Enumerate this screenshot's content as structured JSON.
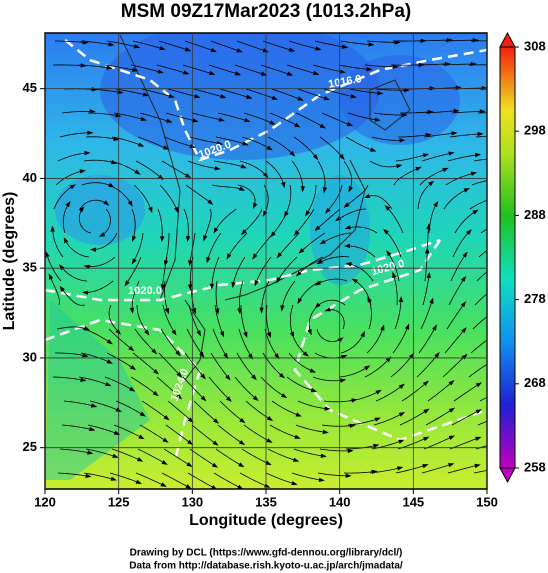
{
  "chart_data": {
    "type": "map",
    "title": "MSM 09Z17Mar2023 (1013.2hPa)",
    "xlabel": "Longitude (degrees)",
    "ylabel": "Latitude  (degrees)",
    "xlim": [
      120,
      150
    ],
    "xticks": [
      120,
      125,
      130,
      135,
      140,
      145,
      150
    ],
    "ylim": [
      22.7,
      48.1
    ],
    "yticks": [
      25,
      30,
      35,
      40,
      45
    ],
    "grid": true,
    "colorbar": {
      "lim": [
        258,
        308
      ],
      "ticks": [
        258,
        268,
        278,
        288,
        298,
        308
      ]
    },
    "contour_labels": [
      "1016.0",
      "1020.0",
      "1020.0",
      "1020.0",
      "1024.0"
    ]
  },
  "footer": {
    "lines": [
      "Drawing by DCL (https://www.gfd-dennou.org/library/dcl/)",
      "Data from http://database.rish.kyoto-u.ac.jp/arch/jmadata/"
    ]
  }
}
